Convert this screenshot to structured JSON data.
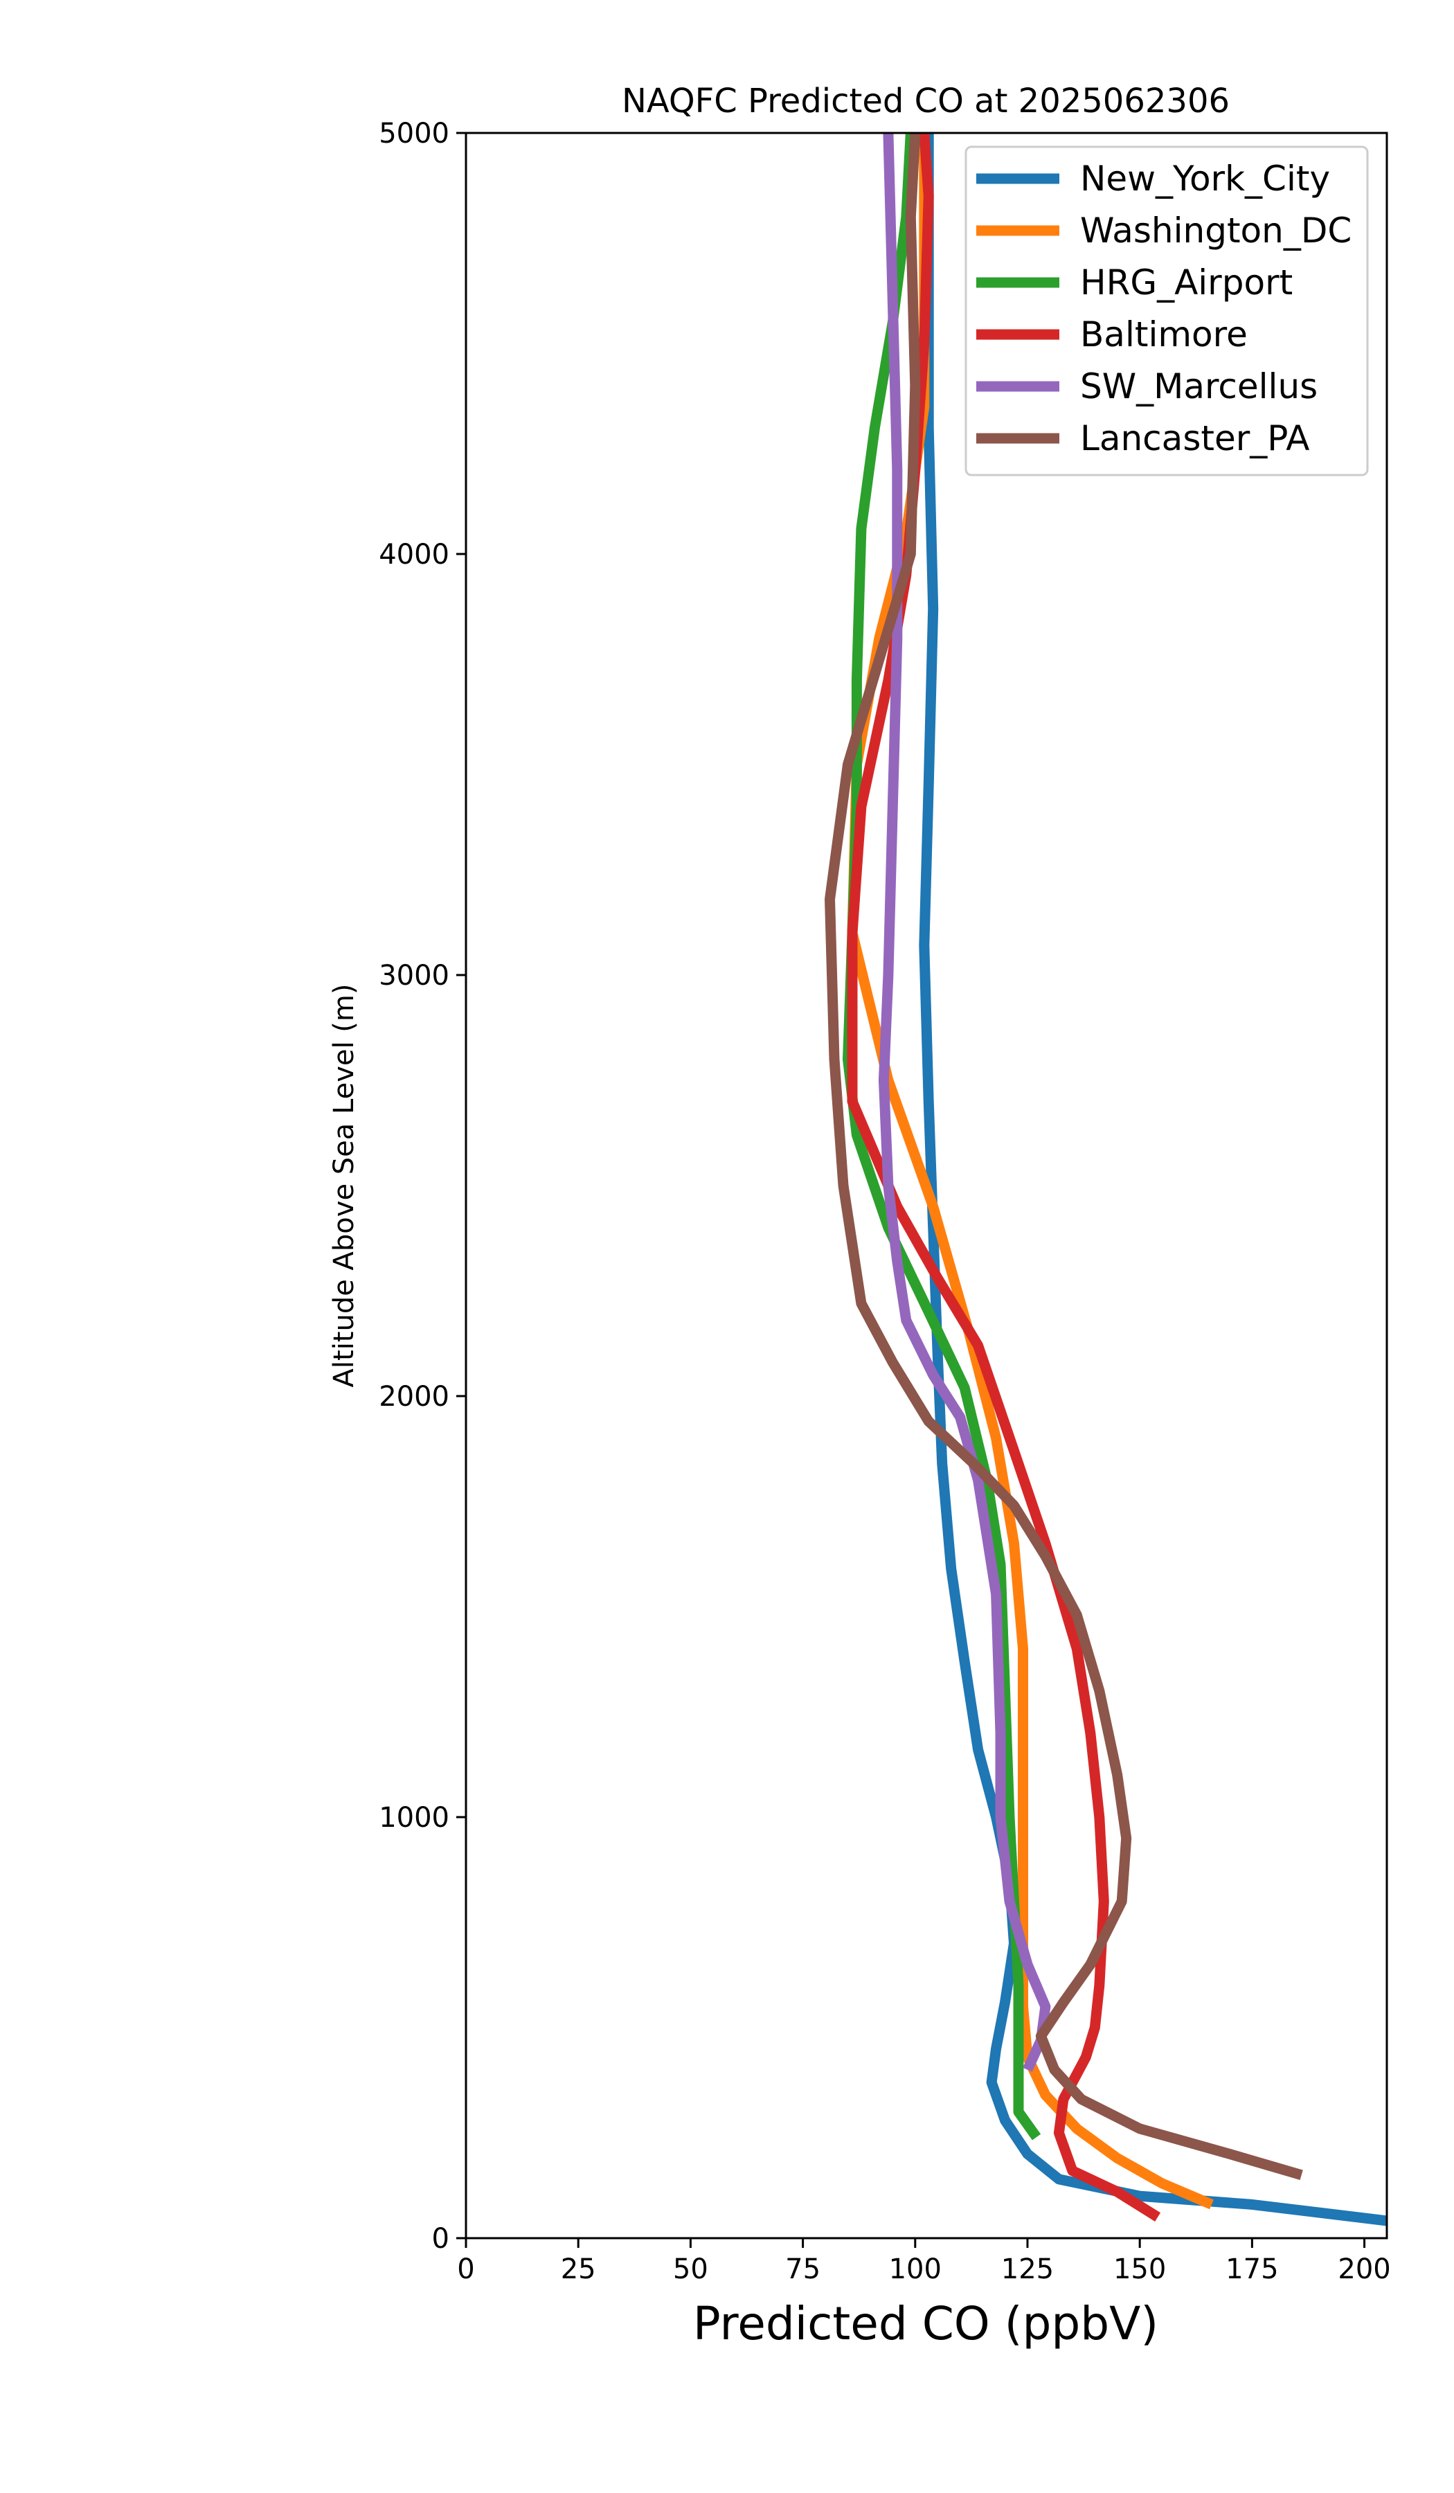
{
  "chart_data": {
    "type": "line",
    "title": "NAQFC Predicted CO at 2025062306",
    "xlabel": "Predicted CO (ppbV)",
    "ylabel": "Altitude Above Sea Level (m)",
    "xlim": [
      0,
      205
    ],
    "ylim": [
      0,
      5000
    ],
    "xticks": [
      "0",
      "25",
      "50",
      "75",
      "100",
      "125",
      "150",
      "175",
      "200"
    ],
    "yticks": [
      "0",
      "1000",
      "2000",
      "3000",
      "4000",
      "5000"
    ],
    "grid": false,
    "legend_position": "top-right",
    "series": [
      {
        "name": "New_York_City",
        "color": "#1f77b4",
        "points": [
          [
            206,
            40
          ],
          [
            175,
            80
          ],
          [
            150,
            100
          ],
          [
            132,
            140
          ],
          [
            125,
            200
          ],
          [
            120,
            280
          ],
          [
            117,
            370
          ],
          [
            118,
            450
          ],
          [
            120,
            560
          ],
          [
            122,
            700
          ],
          [
            121,
            850
          ],
          [
            118,
            1000
          ],
          [
            114,
            1160
          ],
          [
            111,
            1370
          ],
          [
            108,
            1590
          ],
          [
            106,
            1840
          ],
          [
            105,
            2100
          ],
          [
            104,
            2400
          ],
          [
            103,
            2700
          ],
          [
            102,
            3070
          ],
          [
            103,
            3450
          ],
          [
            104,
            3870
          ],
          [
            103,
            4300
          ],
          [
            103,
            4700
          ],
          [
            103,
            5000
          ]
        ]
      },
      {
        "name": "Washington_DC",
        "color": "#ff7f0e",
        "points": [
          [
            166,
            80
          ],
          [
            155,
            130
          ],
          [
            145,
            190
          ],
          [
            136,
            260
          ],
          [
            129,
            340
          ],
          [
            125,
            430
          ],
          [
            124,
            550
          ],
          [
            124,
            700
          ],
          [
            124,
            900
          ],
          [
            124,
            1100
          ],
          [
            124,
            1400
          ],
          [
            122,
            1650
          ],
          [
            118,
            1900
          ],
          [
            112,
            2150
          ],
          [
            104,
            2450
          ],
          [
            94,
            2750
          ],
          [
            86,
            3100
          ],
          [
            87,
            3500
          ],
          [
            92,
            3800
          ],
          [
            98,
            4050
          ],
          [
            102,
            4350
          ],
          [
            102,
            4700
          ],
          [
            102,
            5000
          ]
        ]
      },
      {
        "name": "HRG_Airport",
        "color": "#2ca02c",
        "points": [
          [
            127,
            240
          ],
          [
            123,
            300
          ],
          [
            123,
            400
          ],
          [
            123,
            600
          ],
          [
            122,
            800
          ],
          [
            121,
            1000
          ],
          [
            120,
            1300
          ],
          [
            119,
            1600
          ],
          [
            116,
            1800
          ],
          [
            111,
            2020
          ],
          [
            103,
            2200
          ],
          [
            94,
            2400
          ],
          [
            87,
            2620
          ],
          [
            85,
            2800
          ],
          [
            86,
            3100
          ],
          [
            87,
            3400
          ],
          [
            87,
            3700
          ],
          [
            88,
            4060
          ],
          [
            91,
            4300
          ],
          [
            95,
            4550
          ],
          [
            98,
            4800
          ],
          [
            99,
            5000
          ]
        ]
      },
      {
        "name": "Baltimore",
        "color": "#d62728",
        "points": [
          [
            154,
            50
          ],
          [
            145,
            110
          ],
          [
            135,
            160
          ],
          [
            132,
            250
          ],
          [
            133,
            330
          ],
          [
            138,
            430
          ],
          [
            140,
            500
          ],
          [
            141,
            600
          ],
          [
            142,
            800
          ],
          [
            141,
            1000
          ],
          [
            139,
            1200
          ],
          [
            136,
            1400
          ],
          [
            129,
            1650
          ],
          [
            122,
            1870
          ],
          [
            114,
            2120
          ],
          [
            105,
            2280
          ],
          [
            96,
            2450
          ],
          [
            86,
            2700
          ],
          [
            86,
            3100
          ],
          [
            88,
            3400
          ],
          [
            94,
            3700
          ],
          [
            98,
            3950
          ],
          [
            100,
            4200
          ],
          [
            102,
            4500
          ],
          [
            103,
            4850
          ],
          [
            102,
            5000
          ]
        ]
      },
      {
        "name": "SW_Marcellus",
        "color": "#9467bd",
        "points": [
          [
            125,
            400
          ],
          [
            128,
            470
          ],
          [
            129,
            550
          ],
          [
            125,
            650
          ],
          [
            121,
            800
          ],
          [
            119,
            1000
          ],
          [
            119,
            1200
          ],
          [
            118,
            1530
          ],
          [
            114,
            1800
          ],
          [
            110,
            1950
          ],
          [
            104,
            2050
          ],
          [
            98,
            2180
          ],
          [
            96,
            2320
          ],
          [
            94,
            2500
          ],
          [
            93,
            2750
          ],
          [
            94,
            3000
          ],
          [
            95,
            3400
          ],
          [
            96,
            3800
          ],
          [
            96,
            4200
          ],
          [
            95,
            4600
          ],
          [
            94,
            5000
          ]
        ]
      },
      {
        "name": "Lancaster_PA",
        "color": "#8c564b",
        "points": [
          [
            186,
            150
          ],
          [
            170,
            200
          ],
          [
            150,
            260
          ],
          [
            137,
            330
          ],
          [
            131,
            400
          ],
          [
            128,
            480
          ],
          [
            133,
            560
          ],
          [
            139,
            650
          ],
          [
            146,
            800
          ],
          [
            147,
            950
          ],
          [
            145,
            1100
          ],
          [
            141,
            1300
          ],
          [
            136,
            1480
          ],
          [
            129,
            1620
          ],
          [
            122,
            1740
          ],
          [
            113,
            1840
          ],
          [
            103,
            1940
          ],
          [
            95,
            2080
          ],
          [
            88,
            2220
          ],
          [
            84,
            2500
          ],
          [
            82,
            2800
          ],
          [
            81,
            3180
          ],
          [
            85,
            3500
          ],
          [
            92,
            3750
          ],
          [
            99,
            4000
          ],
          [
            100,
            4400
          ],
          [
            99,
            4800
          ],
          [
            100,
            5000
          ]
        ]
      }
    ]
  }
}
